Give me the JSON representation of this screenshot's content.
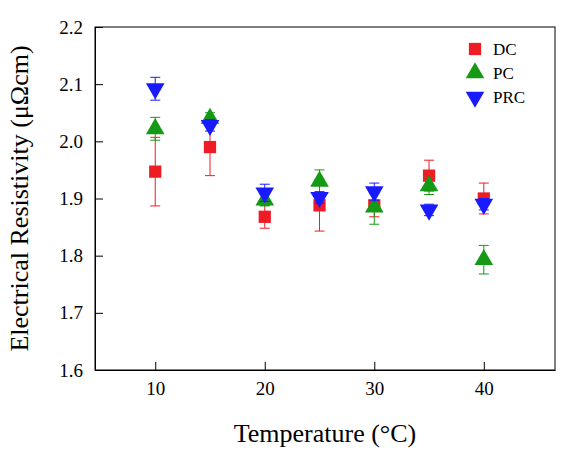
{
  "chart_data": {
    "type": "scatter",
    "x_label": "Temperature (°C)",
    "y_label": "Electrical Resistivity (μΩcm)",
    "x": [
      10,
      15,
      20,
      25,
      30,
      35,
      40
    ],
    "xlim": [
      4.5,
      46.5
    ],
    "xticks": [
      10,
      20,
      30,
      40
    ],
    "ylim": [
      1.6,
      2.2
    ],
    "yticks": [
      1.6,
      1.7,
      1.8,
      1.9,
      {
        "value": 2,
        "label": "2.0"
      },
      2.1,
      2.2
    ],
    "legend": "top-right",
    "grid": false,
    "series": [
      {
        "name": "DC",
        "color": "#ee1c25",
        "marker": "square",
        "values": [
          1.947,
          1.99,
          1.868,
          1.888,
          1.888,
          1.94,
          1.9
        ],
        "errors": [
          0.06,
          0.05,
          0.02,
          0.045,
          0.02,
          0.027,
          0.027
        ]
      },
      {
        "name": "PC",
        "color": "#149a14",
        "marker": "triangle-up",
        "values": [
          2.022,
          2.04,
          1.897,
          1.93,
          1.885,
          1.922,
          1.793
        ],
        "errors": [
          0.02,
          0.01,
          0.01,
          0.02,
          0.03,
          0.015,
          0.025
        ]
      },
      {
        "name": "PRC",
        "color": "#1a1aff",
        "marker": "triangle-down",
        "values": [
          2.092,
          2.028,
          1.91,
          1.902,
          1.912,
          1.88,
          1.89
        ],
        "errors": [
          0.02,
          0.01,
          0.015,
          0.01,
          0.015,
          0.01,
          0.01
        ]
      }
    ]
  }
}
